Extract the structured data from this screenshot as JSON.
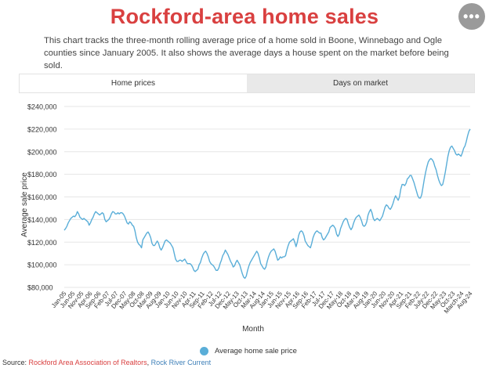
{
  "header": {
    "title": "Rockford-area home sales",
    "subtitle": "This chart tracks the three-month rolling average price of a home sold in Boone, Winnebago and Ogle counties since January 2005. It also shows the average days a house spent on the market before being sold.",
    "menu_glyph": "•••"
  },
  "tabs": [
    {
      "label": "Home prices",
      "active": true
    },
    {
      "label": "Days on market",
      "active": false
    }
  ],
  "source": {
    "prefix": "Source: ",
    "org1": "Rockford Area Association of Realtors",
    "sep": ", ",
    "org2": "Rock River Current"
  },
  "colors": {
    "line": "#5aaed8",
    "title": "#d94040",
    "grid": "#e6e6e6"
  },
  "chart_data": {
    "type": "line",
    "title": "",
    "xlabel": "Month",
    "ylabel": "Average sale price",
    "ylim": [
      80000,
      240000
    ],
    "yticks": [
      80000,
      100000,
      120000,
      140000,
      160000,
      180000,
      200000,
      220000,
      240000
    ],
    "ytick_labels": [
      "$80,000",
      "$100,000",
      "$120,000",
      "$140,000",
      "$160,000",
      "$180,000",
      "$200,000",
      "$220,000",
      "$240,000"
    ],
    "xtick_labels": [
      "Jan-05",
      "Jun-05",
      "Nov-05",
      "Apr-06",
      "Sep-06",
      "Feb-07",
      "Jul-07",
      "Dec-07",
      "May-08",
      "Oct-08",
      "Mar-09",
      "Aug-09",
      "Jan-10",
      "Jun-10",
      "Nov-10",
      "Apr-11",
      "Sep-11",
      "Feb-12",
      "Jul-12",
      "Dec-12",
      "May-13",
      "Oct-13",
      "Mar-14",
      "Aug-14",
      "Jan-15",
      "Jun-15",
      "Nov-15",
      "Apr-16",
      "Sep-16",
      "Feb-17",
      "Jul-17",
      "Dec-17",
      "May-18",
      "Oct-18",
      "Mar-19",
      "Aug-19",
      "Jan-20",
      "Jun-20",
      "Nov-20",
      "Apr-21",
      "Sep-21",
      "Feb-22",
      "July-22",
      "Dec-22",
      "May-23",
      "Oct-23",
      "March-24",
      "Aug-24"
    ],
    "legend": [
      "Average home sale price"
    ],
    "legend_position": "bottom",
    "grid": true,
    "series": [
      {
        "name": "Average home sale price",
        "values": [
          130500,
          132000,
          134000,
          137000,
          139000,
          141000,
          142000,
          143000,
          142500,
          144000,
          147000,
          145000,
          142000,
          141000,
          140000,
          141000,
          140000,
          139000,
          138000,
          135000,
          137000,
          140000,
          142000,
          145000,
          147000,
          146000,
          145000,
          144000,
          145000,
          146000,
          145000,
          140000,
          138000,
          139000,
          140000,
          142000,
          145000,
          147000,
          146500,
          145000,
          145000,
          146000,
          145000,
          146000,
          146000,
          145000,
          143000,
          140000,
          137000,
          136000,
          138000,
          137000,
          135000,
          134000,
          130000,
          124000,
          120000,
          118000,
          117000,
          115000,
          122000,
          124000,
          126000,
          128000,
          129000,
          127000,
          124000,
          119000,
          117000,
          117000,
          119000,
          121000,
          119000,
          115000,
          113000,
          115000,
          118000,
          121000,
          122000,
          121000,
          120000,
          119000,
          117000,
          115000,
          110000,
          105000,
          103000,
          103000,
          104000,
          104000,
          103000,
          104000,
          105000,
          103000,
          101000,
          101000,
          101000,
          100000,
          98000,
          95000,
          94000,
          95000,
          96000,
          100000,
          102000,
          106000,
          109000,
          111000,
          112000,
          110000,
          107000,
          103000,
          101000,
          100000,
          99000,
          97000,
          95000,
          95000,
          97000,
          101000,
          104000,
          108000,
          110000,
          113000,
          111000,
          109000,
          106000,
          103000,
          101000,
          98000,
          99000,
          102000,
          104000,
          102000,
          100000,
          96000,
          92000,
          89000,
          88000,
          90000,
          95000,
          99000,
          102000,
          104000,
          106000,
          108000,
          110000,
          112000,
          110000,
          106000,
          101000,
          99000,
          97000,
          96000,
          98000,
          103000,
          107000,
          110000,
          112000,
          113000,
          114000,
          112000,
          108000,
          104000,
          105000,
          107000,
          106000,
          107000,
          107000,
          108000,
          113000,
          117000,
          120000,
          121000,
          122000,
          123000,
          120000,
          116000,
          120000,
          126000,
          129000,
          130000,
          129000,
          126000,
          121000,
          119000,
          117000,
          116000,
          115000,
          119000,
          124000,
          127000,
          129000,
          130000,
          129000,
          128000,
          128000,
          124000,
          122000,
          123000,
          125000,
          127000,
          129000,
          133000,
          134000,
          135000,
          134000,
          132000,
          127000,
          125000,
          127000,
          132000,
          135000,
          138000,
          140000,
          141000,
          140000,
          136000,
          133000,
          131000,
          133000,
          137000,
          140000,
          142000,
          143000,
          144000,
          142000,
          139000,
          135000,
          134000,
          135000,
          138000,
          144000,
          147000,
          149000,
          146000,
          141000,
          139000,
          140000,
          141000,
          140000,
          139000,
          141000,
          143000,
          147000,
          151000,
          153000,
          152000,
          150000,
          149000,
          151000,
          154000,
          158000,
          161000,
          159000,
          157000,
          160000,
          167000,
          171000,
          171000,
          170000,
          172000,
          176000,
          177000,
          179000,
          179000,
          176000,
          173000,
          169000,
          165000,
          161000,
          159000,
          159000,
          162000,
          169000,
          176000,
          182000,
          187000,
          191000,
          193000,
          194000,
          193000,
          191000,
          187000,
          184000,
          179000,
          175000,
          172000,
          170000,
          171000,
          176000,
          182000,
          189000,
          196000,
          201000,
          204000,
          205000,
          203000,
          201000,
          198000,
          197000,
          198000,
          197000,
          196000,
          199000,
          203000,
          205000,
          209000,
          214000,
          218000,
          220000
        ]
      }
    ]
  }
}
